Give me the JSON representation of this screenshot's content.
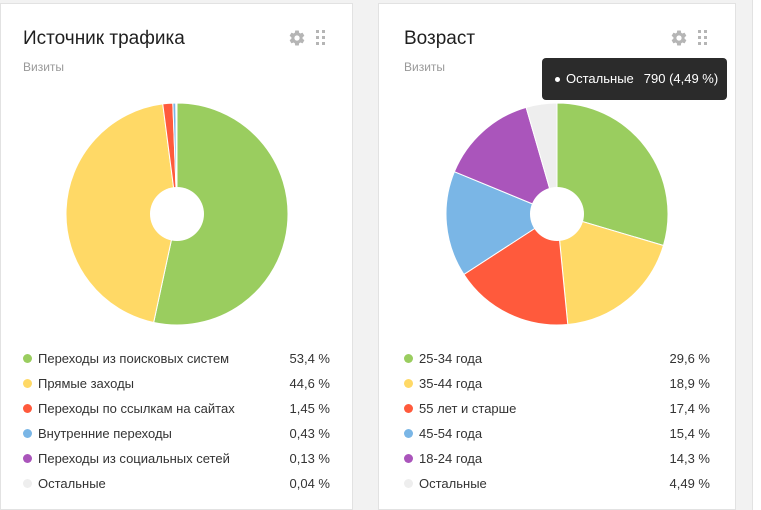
{
  "chart_data": [
    {
      "type": "pie",
      "donut": true,
      "title": "Источник трафика",
      "subtitle": "Визиты",
      "slices": [
        {
          "label": "Переходы из поисковых систем",
          "value": 53.4,
          "display": "53,4 %",
          "color": "#9acd5f"
        },
        {
          "label": "Прямые заходы",
          "value": 44.6,
          "display": "44,6 %",
          "color": "#ffd966"
        },
        {
          "label": "Переходы по ссылкам на сайтах",
          "value": 1.45,
          "display": "1,45 %",
          "color": "#ff5a3c"
        },
        {
          "label": "Внутренние переходы",
          "value": 0.43,
          "display": "0,43 %",
          "color": "#7ab6e6"
        },
        {
          "label": "Переходы из социальных сетей",
          "value": 0.13,
          "display": "0,13 %",
          "color": "#aa55bb"
        },
        {
          "label": "Остальные",
          "value": 0.04,
          "display": "0,04 %",
          "color": "#eeeeee"
        }
      ]
    },
    {
      "type": "pie",
      "donut": true,
      "title": "Возраст",
      "subtitle": "Визиты",
      "slices": [
        {
          "label": "25-34 года",
          "value": 29.6,
          "display": "29,6 %",
          "color": "#9acd5f"
        },
        {
          "label": "35-44 года",
          "value": 18.9,
          "display": "18,9 %",
          "color": "#ffd966"
        },
        {
          "label": "55 лет и старше",
          "value": 17.4,
          "display": "17,4 %",
          "color": "#ff5a3c"
        },
        {
          "label": "45-54 года",
          "value": 15.4,
          "display": "15,4 %",
          "color": "#7ab6e6"
        },
        {
          "label": "18-24 года",
          "value": 14.3,
          "display": "14,3 %",
          "color": "#aa55bb"
        },
        {
          "label": "Остальные",
          "value": 4.49,
          "display": "4,49 %",
          "color": "#eeeeee"
        }
      ]
    }
  ],
  "tooltip": {
    "label": "Остальные",
    "value": "790 (4,49 %)"
  }
}
